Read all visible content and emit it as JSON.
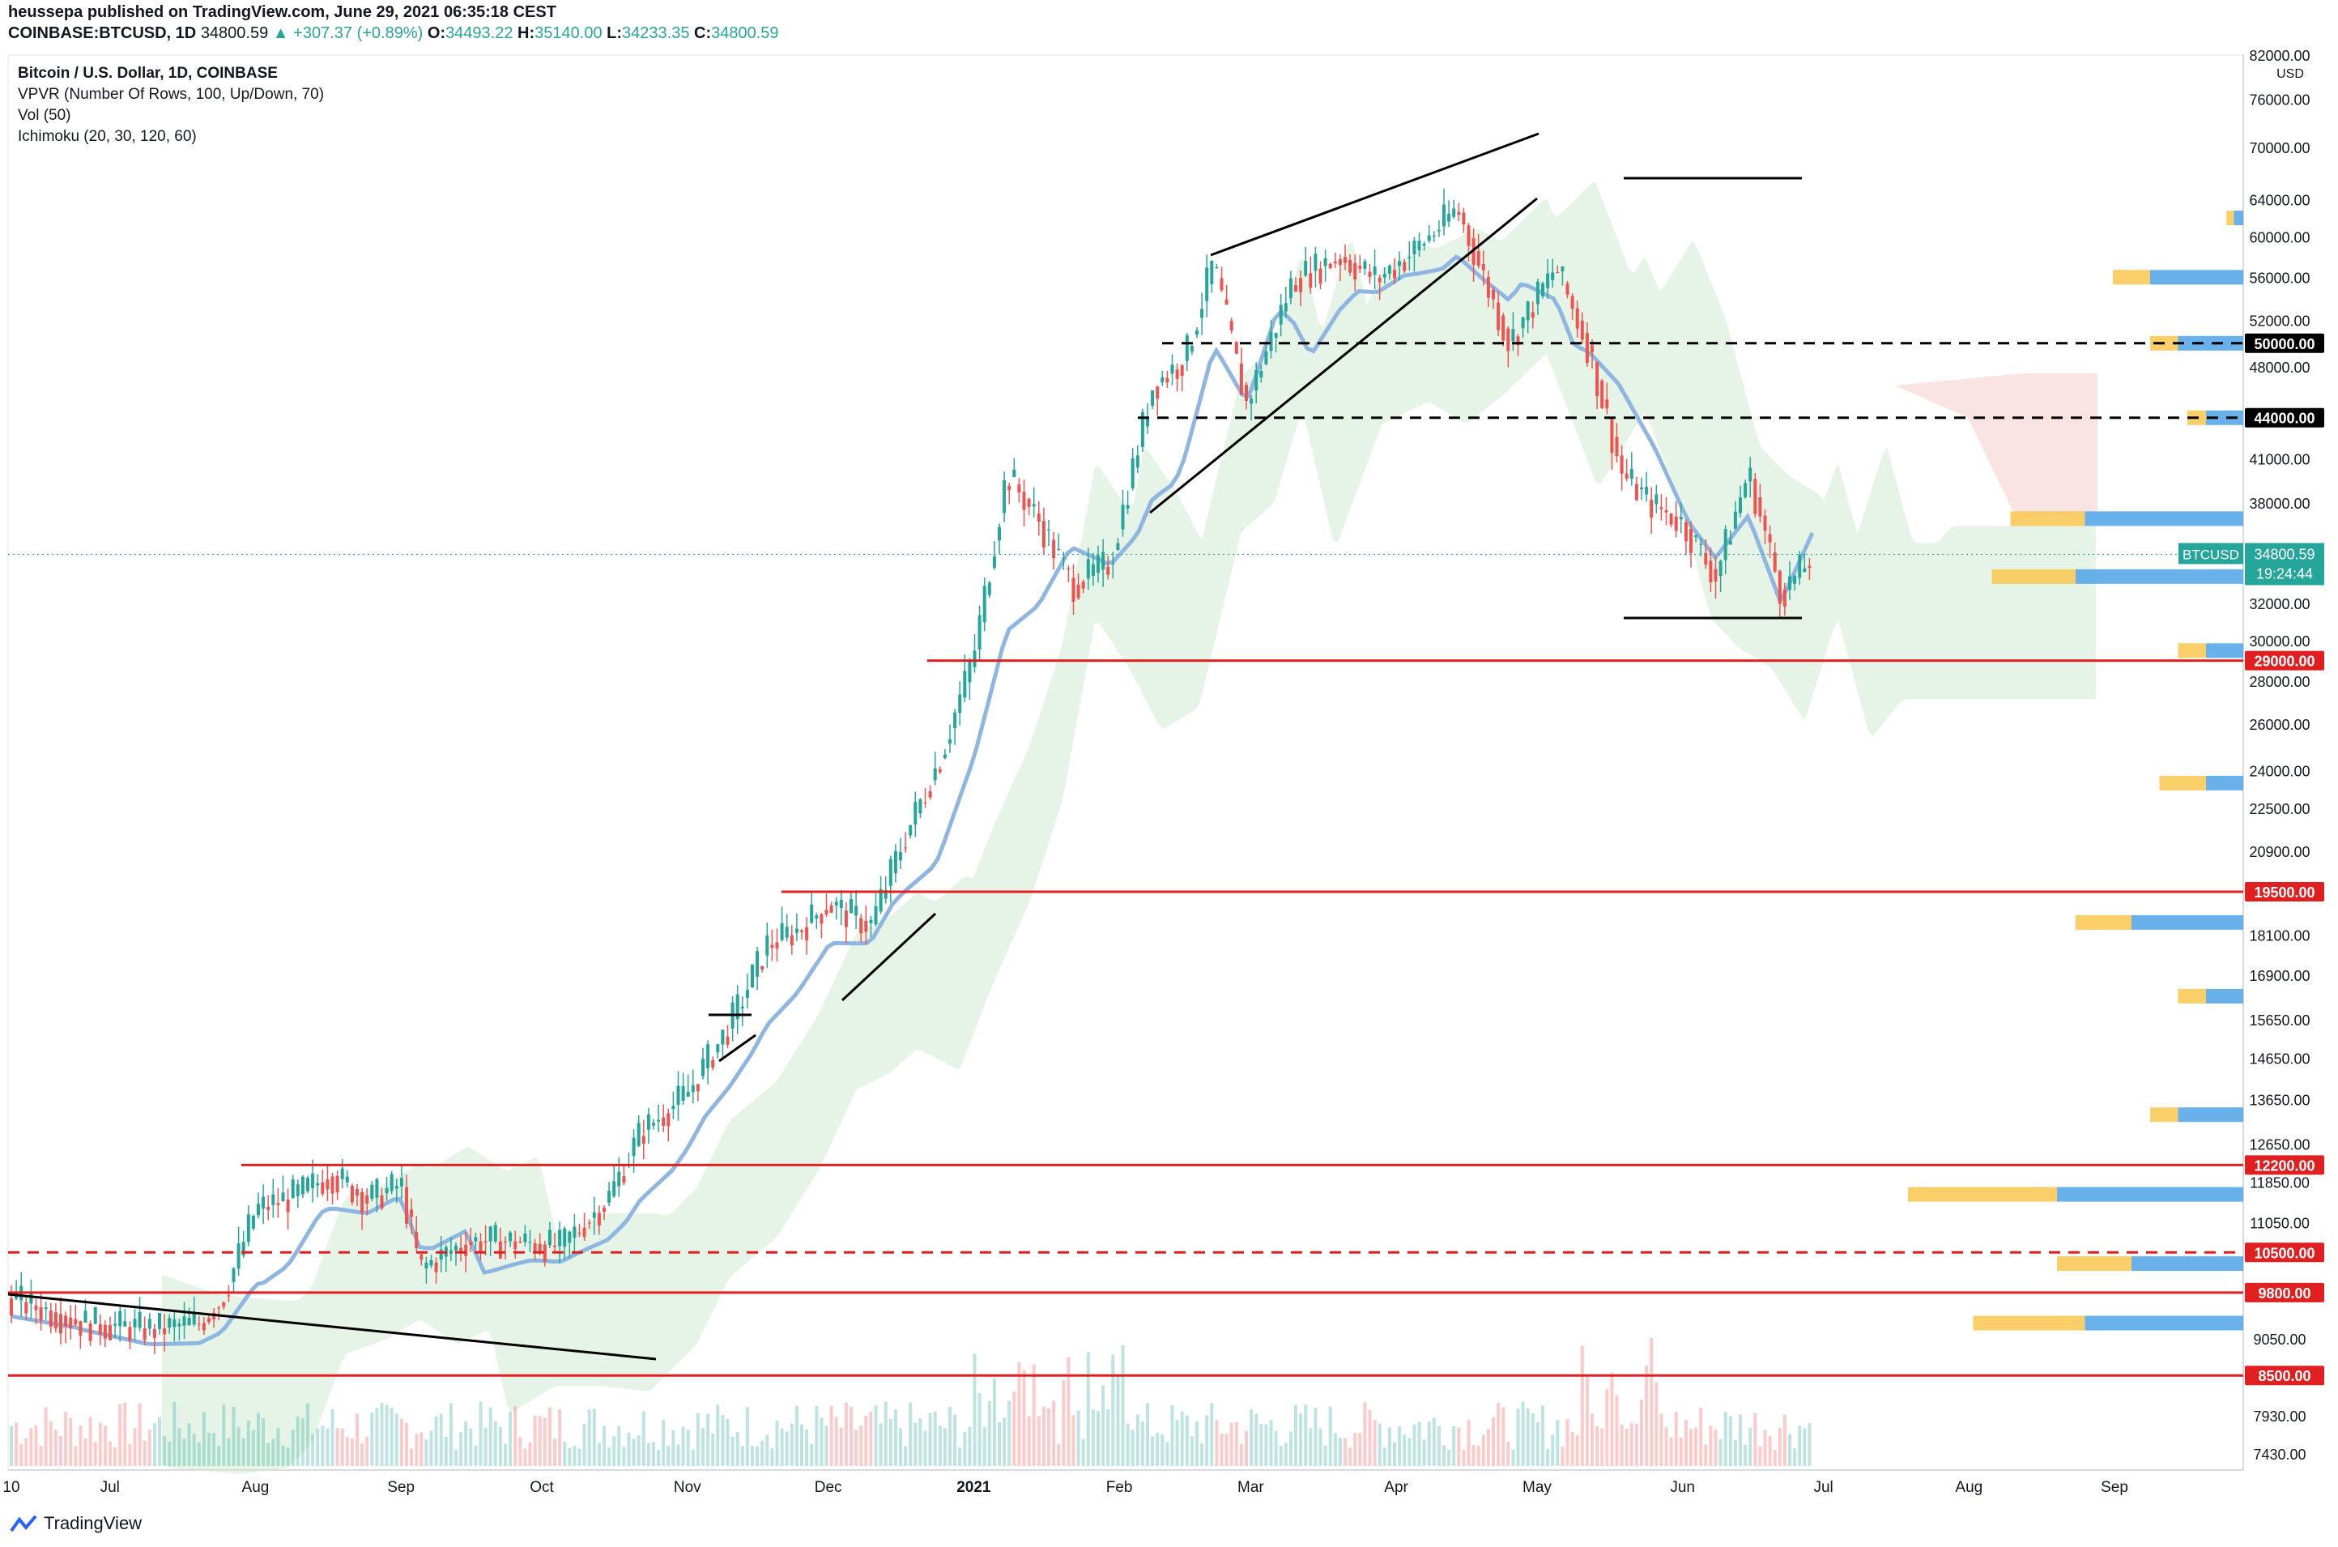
{
  "header": {
    "publisher_line": "heussepa published on TradingView.com, June 29, 2021 06:35:18 CEST",
    "symbol": "COINBASE:BTCUSD, 1D",
    "last": "34800.59",
    "change": "+307.37 (+0.89%)",
    "o_label": "O:",
    "o": "34493.22",
    "h_label": "H:",
    "h": "35140.00",
    "l_label": "L:",
    "l": "34233.35",
    "c_label": "C:",
    "c": "34800.59"
  },
  "legend": {
    "title": "Bitcoin / U.S. Dollar, 1D, COINBASE",
    "vpvr": "VPVR (Number Of Rows, 100, Up/Down, 70)",
    "vol": "Vol (50)",
    "ichimoku": "Ichimoku (20, 30, 120, 60)"
  },
  "footer": {
    "brand": "TradingView"
  },
  "colors": {
    "up": "#26a69a",
    "down": "#ef5350",
    "candle_up": "#26a69a",
    "candle_down": "#ef5350",
    "kijun": "#8fb6e0",
    "cloud_green": "#c8e6c9",
    "cloud_red": "#f8d7d7",
    "vpvr_up": "#f9c74f",
    "vpvr_down": "#4da3e6",
    "hline": "#e02020",
    "trend": "#000000"
  },
  "chart_data": {
    "type": "candlestick",
    "title": "Bitcoin / U.S. Dollar, 1D, COINBASE",
    "y_unit": "USD",
    "y_scale": "log",
    "ylim": [
      7000,
      82000
    ],
    "y_ticks": [
      "82000.00",
      "76000.00",
      "70000.00",
      "64000.00",
      "60000.00",
      "56000.00",
      "52000.00",
      "48000.00",
      "41000.00",
      "38000.00",
      "32000.00",
      "30000.00",
      "28000.00",
      "26000.00",
      "24000.00",
      "22500.00",
      "20900.00",
      "18100.00",
      "16900.00",
      "15650.00",
      "14650.00",
      "13650.00",
      "12650.00",
      "11850.00",
      "11050.00",
      "9050.00",
      "7930.00",
      "7430.00"
    ],
    "x_ticks": [
      "10",
      "Jul",
      "Aug",
      "Sep",
      "Oct",
      "Nov",
      "Dec",
      "2021",
      "Feb",
      "Mar",
      "Apr",
      "May",
      "Jun",
      "Jul",
      "Aug",
      "Sep"
    ],
    "last_price": {
      "label": "BTCUSD",
      "value": "34800.59",
      "countdown": "19:24:44"
    },
    "horizontal_levels": [
      {
        "value": 50000,
        "label": "50000.00",
        "style": "dashed",
        "color": "#000000"
      },
      {
        "value": 44000,
        "label": "44000.00",
        "style": "dashed",
        "color": "#000000"
      },
      {
        "value": 29000,
        "label": "29000.00",
        "style": "solid",
        "color": "#e02020"
      },
      {
        "value": 19500,
        "label": "19500.00",
        "style": "solid",
        "color": "#e02020"
      },
      {
        "value": 12200,
        "label": "12200.00",
        "style": "solid",
        "color": "#e02020"
      },
      {
        "value": 10500,
        "label": "10500.00",
        "style": "dashed",
        "color": "#e02020"
      },
      {
        "value": 9800,
        "label": "9800.00",
        "style": "solid",
        "color": "#e02020"
      },
      {
        "value": 8500,
        "label": "8500.00",
        "style": "solid",
        "color": "#e02020"
      }
    ],
    "close_series": {
      "name": "BTCUSD close (approx.)",
      "dates": [
        "2020-06-10",
        "2020-06-25",
        "2020-07-10",
        "2020-07-20",
        "2020-07-25",
        "2020-08-01",
        "2020-08-10",
        "2020-08-17",
        "2020-08-25",
        "2020-09-01",
        "2020-09-05",
        "2020-09-15",
        "2020-09-25",
        "2020-10-05",
        "2020-10-15",
        "2020-10-22",
        "2020-11-01",
        "2020-11-10",
        "2020-11-18",
        "2020-11-25",
        "2020-12-01",
        "2020-12-10",
        "2020-12-17",
        "2020-12-25",
        "2021-01-01",
        "2021-01-08",
        "2021-01-15",
        "2021-01-22",
        "2021-01-30",
        "2021-02-08",
        "2021-02-15",
        "2021-02-21",
        "2021-02-28",
        "2021-03-10",
        "2021-03-20",
        "2021-03-28",
        "2021-04-05",
        "2021-04-14",
        "2021-04-25",
        "2021-05-05",
        "2021-05-12",
        "2021-05-19",
        "2021-05-25",
        "2021-06-01",
        "2021-06-08",
        "2021-06-15",
        "2021-06-22",
        "2021-06-29"
      ],
      "values": [
        9700,
        9300,
        9200,
        9300,
        9700,
        11300,
        11600,
        12000,
        11500,
        11800,
        10200,
        10700,
        10700,
        10600,
        11500,
        12900,
        13800,
        15500,
        17800,
        18300,
        19100,
        18400,
        21300,
        24600,
        29300,
        40000,
        36800,
        33000,
        34300,
        46400,
        48700,
        57400,
        45000,
        55800,
        58000,
        55800,
        58700,
        63000,
        50000,
        57000,
        49500,
        40000,
        38000,
        36700,
        33500,
        40100,
        32500,
        34800
      ]
    },
    "volume_profile_bins": [
      {
        "price": 62000,
        "up": 4,
        "down": 5
      },
      {
        "price": 56000,
        "up": 20,
        "down": 50
      },
      {
        "price": 50000,
        "up": 15,
        "down": 35
      },
      {
        "price": 44000,
        "up": 10,
        "down": 20
      },
      {
        "price": 37000,
        "up": 40,
        "down": 85
      },
      {
        "price": 33500,
        "up": 45,
        "down": 90
      },
      {
        "price": 29500,
        "up": 15,
        "down": 20
      },
      {
        "price": 23500,
        "up": 25,
        "down": 20
      },
      {
        "price": 18500,
        "up": 30,
        "down": 60
      },
      {
        "price": 16300,
        "up": 15,
        "down": 20
      },
      {
        "price": 13300,
        "up": 15,
        "down": 35
      },
      {
        "price": 11600,
        "up": 80,
        "down": 100
      },
      {
        "price": 10300,
        "up": 40,
        "down": 60
      },
      {
        "price": 9300,
        "up": 60,
        "down": 85
      }
    ]
  }
}
